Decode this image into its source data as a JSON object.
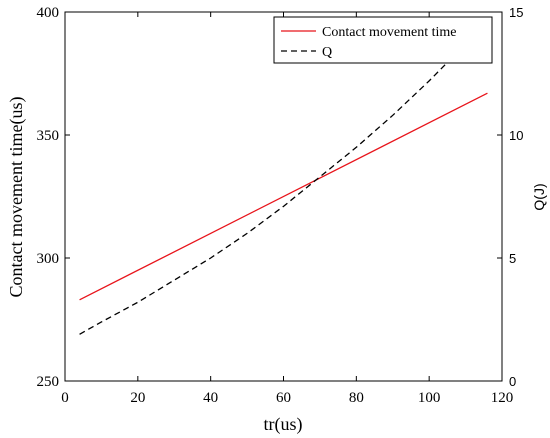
{
  "chart_data": {
    "type": "line",
    "xlabel": "tr(us)",
    "ylabel_left": "Contact movement time(us)",
    "ylabel_right": "Q(J)",
    "xlim": [
      0,
      120
    ],
    "ylim_left": [
      250,
      400
    ],
    "ylim_right": [
      0,
      15
    ],
    "x_ticks": [
      "0",
      "20",
      "40",
      "60",
      "80",
      "100",
      "120"
    ],
    "y_left_ticks": [
      "250",
      "300",
      "350",
      "400"
    ],
    "y_right_ticks": [
      "0",
      "5",
      "10",
      "15"
    ],
    "grid": false,
    "legend_position": "top-right",
    "series": [
      {
        "name": "Contact movement time",
        "axis": "left",
        "color": "#e8141b",
        "style": "solid",
        "x": [
          4,
          116
        ],
        "y": [
          283,
          367
        ]
      },
      {
        "name": "Q",
        "axis": "right",
        "color": "#000000",
        "style": "dashed",
        "x": [
          4,
          10,
          20,
          30,
          40,
          50,
          60,
          70,
          80,
          90,
          100,
          110,
          116
        ],
        "y": [
          1.9,
          2.4,
          3.2,
          4.1,
          5.0,
          6.0,
          7.1,
          8.3,
          9.5,
          10.8,
          12.2,
          13.7,
          14.8
        ]
      }
    ]
  }
}
